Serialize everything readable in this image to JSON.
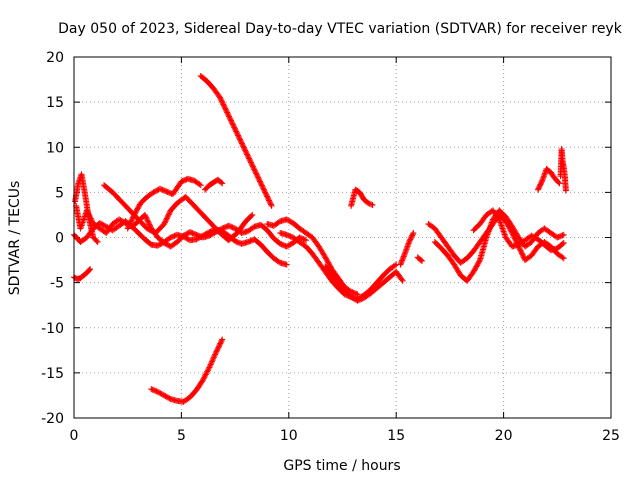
{
  "chart_data": {
    "type": "scatter",
    "title": "Day 050 of 2023, Sidereal Day-to-day VTEC variation (SDTVAR) for receiver reyk",
    "xlabel": "GPS time / hours",
    "ylabel": "SDTVAR / TECUs",
    "xlim": [
      0,
      25
    ],
    "ylim": [
      -20,
      20
    ],
    "xticks": [
      "0",
      "5",
      "10",
      "15",
      "20",
      "25"
    ],
    "yticks": [
      "20",
      "15",
      "10",
      "5",
      "0",
      "-5",
      "-10",
      "-15",
      "-20"
    ],
    "marker": "+",
    "color": "#ff0000",
    "grid": true,
    "series": [
      {
        "name": "t1",
        "x": [
          0.0,
          0.3,
          0.6,
          0.9,
          1.2,
          1.5,
          1.8,
          2.1,
          2.4,
          2.7,
          3.0,
          3.3,
          3.6,
          3.9,
          4.2,
          4.5,
          4.8,
          5.1,
          5.4,
          5.7,
          6.0,
          6.3,
          6.6,
          6.9,
          7.2,
          7.5,
          7.8,
          8.1,
          8.4,
          8.7,
          9.0,
          9.3,
          9.6,
          9.9
        ],
        "y": [
          0.3,
          -0.5,
          0.0,
          1.0,
          1.6,
          1.2,
          0.8,
          1.3,
          1.8,
          1.2,
          0.5,
          -0.2,
          -0.8,
          -0.9,
          -0.5,
          0.0,
          0.3,
          0.1,
          -0.3,
          -0.2,
          0.2,
          0.6,
          0.9,
          0.7,
          0.2,
          -0.4,
          -0.7,
          -0.5,
          -0.2,
          -0.8,
          -1.6,
          -2.3,
          -2.8,
          -3.0
        ]
      },
      {
        "name": "t2",
        "x": [
          0.1,
          0.3,
          0.6,
          0.9,
          1.2,
          1.5,
          1.8,
          2.1,
          2.4,
          2.7,
          3.0,
          3.3,
          3.6,
          3.9,
          4.2,
          4.5,
          4.8,
          5.1,
          5.4,
          5.7,
          6.0,
          6.3,
          6.6,
          6.9,
          7.2,
          7.5,
          7.8,
          8.1,
          8.4,
          8.7,
          9.0,
          9.3,
          9.6,
          9.9,
          10.2,
          10.5,
          10.8
        ],
        "y": [
          3.5,
          1.0,
          3.0,
          1.5,
          1.0,
          0.5,
          1.5,
          2.0,
          1.6,
          1.2,
          1.8,
          2.5,
          1.0,
          0.0,
          -0.6,
          -1.0,
          -0.5,
          0.2,
          0.6,
          0.3,
          0.0,
          0.2,
          0.6,
          1.0,
          1.3,
          1.0,
          0.5,
          0.7,
          1.2,
          1.4,
          0.8,
          -0.1,
          -0.7,
          -1.0,
          -0.6,
          0.0,
          -0.3
        ]
      },
      {
        "name": "t3",
        "x": [
          0.0,
          0.15,
          0.3,
          0.45,
          0.6,
          0.75
        ],
        "y": [
          -4.4,
          -4.6,
          -4.5,
          -4.2,
          -3.9,
          -3.5
        ]
      },
      {
        "name": "t4",
        "x": [
          0.05,
          0.2,
          0.35,
          0.5,
          0.7,
          0.9,
          1.1
        ],
        "y": [
          4.0,
          6.0,
          7.0,
          5.0,
          2.0,
          0.0,
          -0.5
        ]
      },
      {
        "name": "t5",
        "x": [
          1.4,
          1.8,
          2.2,
          2.6,
          3.0,
          3.4,
          3.8,
          4.2,
          4.5,
          4.8,
          5.2,
          5.6,
          6.0,
          6.4,
          6.8,
          7.2,
          7.6,
          8.0,
          8.3
        ],
        "y": [
          5.8,
          5.0,
          4.0,
          3.0,
          2.0,
          1.0,
          0.5,
          1.5,
          3.0,
          3.8,
          4.5,
          3.5,
          2.5,
          1.5,
          0.5,
          -0.3,
          0.5,
          1.8,
          2.5
        ]
      },
      {
        "name": "t6",
        "x": [
          2.5,
          2.8,
          3.1,
          3.4,
          3.7,
          4.0,
          4.3,
          4.6,
          5.0,
          5.3,
          5.6,
          5.9
        ],
        "y": [
          1.0,
          2.5,
          3.8,
          4.5,
          5.0,
          5.4,
          5.1,
          4.8,
          6.2,
          6.5,
          6.3,
          5.8
        ]
      },
      {
        "name": "t7",
        "x": [
          6.1,
          6.3,
          6.5,
          6.7,
          6.9
        ],
        "y": [
          5.3,
          5.8,
          6.1,
          6.4,
          6.0
        ]
      },
      {
        "name": "t8",
        "x": [
          5.9,
          6.2,
          6.5,
          6.8,
          7.1,
          7.4,
          7.7,
          8.0,
          8.3,
          8.6,
          8.9,
          9.2
        ],
        "y": [
          17.9,
          17.3,
          16.5,
          15.5,
          14.0,
          12.5,
          11.0,
          9.5,
          8.0,
          6.5,
          5.0,
          3.5
        ]
      },
      {
        "name": "t9",
        "x": [
          3.6,
          3.9,
          4.2,
          4.5,
          4.8,
          5.1,
          5.4,
          5.7,
          6.0,
          6.3,
          6.6,
          6.9
        ],
        "y": [
          -16.8,
          -17.1,
          -17.5,
          -17.9,
          -18.1,
          -18.2,
          -17.7,
          -16.9,
          -15.8,
          -14.4,
          -12.8,
          -11.3
        ]
      },
      {
        "name": "t10",
        "x": [
          9.6,
          9.9,
          10.2,
          10.5,
          10.8,
          11.1,
          11.4,
          11.7,
          12.0,
          12.3,
          12.6,
          12.9,
          13.2,
          13.5,
          13.8,
          14.1,
          14.4,
          14.7,
          15.0
        ],
        "y": [
          0.5,
          0.3,
          0.0,
          -0.5,
          -1.0,
          -1.8,
          -2.8,
          -3.8,
          -4.8,
          -5.6,
          -6.3,
          -6.6,
          -6.8,
          -6.4,
          -5.8,
          -5.0,
          -4.2,
          -3.5,
          -3.0
        ]
      },
      {
        "name": "t11",
        "x": [
          9.0,
          9.3,
          9.6,
          9.9,
          10.2,
          10.5,
          10.8,
          11.1,
          11.4,
          11.7,
          12.0,
          12.3,
          12.6,
          12.9,
          13.2
        ],
        "y": [
          1.5,
          1.3,
          1.8,
          2.0,
          1.6,
          1.0,
          0.5,
          0.0,
          -1.0,
          -2.2,
          -3.5,
          -4.5,
          -5.5,
          -6.0,
          -6.3
        ]
      },
      {
        "name": "t12",
        "x": [
          11.7,
          12.0,
          12.3,
          12.6,
          12.9,
          13.2,
          13.5,
          13.8,
          14.1,
          14.4,
          14.7,
          15.0,
          15.3
        ],
        "y": [
          -3.2,
          -4.0,
          -5.0,
          -5.8,
          -6.6,
          -7.0,
          -6.7,
          -6.2,
          -5.6,
          -5.0,
          -4.4,
          -3.8,
          -4.8
        ]
      },
      {
        "name": "t13",
        "x": [
          12.9,
          13.1,
          13.3,
          13.5,
          13.7,
          13.9
        ],
        "y": [
          3.5,
          5.3,
          5.0,
          4.2,
          3.8,
          3.6
        ]
      },
      {
        "name": "t14",
        "x": [
          15.2,
          15.4,
          15.6,
          15.8
        ],
        "y": [
          -3.0,
          -1.8,
          -0.5,
          0.5
        ]
      },
      {
        "name": "t15",
        "x": [
          16.0,
          16.2
        ],
        "y": [
          -2.2,
          -2.6
        ]
      },
      {
        "name": "t16",
        "x": [
          16.5,
          16.8,
          17.1,
          17.4,
          17.7,
          18.0,
          18.3,
          18.6,
          18.9,
          19.2,
          19.5,
          19.8,
          20.1,
          20.4,
          20.7,
          21.0,
          21.3,
          21.6,
          21.9,
          22.2,
          22.5,
          22.8
        ],
        "y": [
          1.5,
          1.0,
          0.0,
          -1.0,
          -2.0,
          -2.8,
          -2.3,
          -1.5,
          -0.5,
          0.5,
          1.5,
          2.5,
          1.8,
          0.5,
          -1.0,
          -2.5,
          -2.0,
          -1.0,
          -0.5,
          -1.0,
          -1.8,
          -2.3
        ]
      },
      {
        "name": "t17",
        "x": [
          16.8,
          17.1,
          17.4,
          17.7,
          18.0,
          18.3,
          18.6,
          18.9,
          19.2,
          19.5,
          19.8,
          20.1,
          20.4,
          20.7,
          21.0,
          21.3,
          21.6,
          21.9,
          22.2,
          22.5,
          22.8
        ],
        "y": [
          -0.5,
          -1.2,
          -2.0,
          -3.0,
          -4.2,
          -4.8,
          -3.8,
          -2.5,
          0.0,
          2.0,
          3.0,
          2.3,
          1.2,
          0.0,
          -1.0,
          -0.5,
          0.5,
          1.0,
          0.5,
          0.0,
          0.3
        ]
      },
      {
        "name": "t18",
        "x": [
          18.6,
          18.9,
          19.2,
          19.5,
          19.8,
          20.1,
          20.4,
          20.7,
          21.0,
          21.3,
          21.6,
          21.9,
          22.2,
          22.5,
          22.8
        ],
        "y": [
          0.8,
          1.5,
          2.5,
          3.0,
          2.0,
          0.0,
          -1.0,
          -0.8,
          -0.3,
          0.2,
          -0.2,
          -0.8,
          -1.4,
          -1.2,
          -0.6
        ]
      },
      {
        "name": "t19",
        "x": [
          21.6,
          21.8,
          22.0,
          22.2,
          22.4,
          22.6
        ],
        "y": [
          5.3,
          6.3,
          7.6,
          7.2,
          6.5,
          6.0
        ]
      },
      {
        "name": "t20",
        "x": [
          22.65,
          22.7,
          22.75,
          22.8,
          22.85,
          22.9
        ],
        "y": [
          6.8,
          9.8,
          8.4,
          7.8,
          6.8,
          5.2
        ]
      }
    ]
  }
}
